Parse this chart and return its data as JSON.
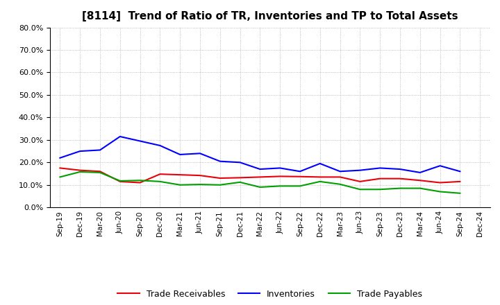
{
  "title": "[8114]  Trend of Ratio of TR, Inventories and TP to Total Assets",
  "x_labels": [
    "Sep-19",
    "Dec-19",
    "Mar-20",
    "Jun-20",
    "Sep-20",
    "Dec-20",
    "Mar-21",
    "Jun-21",
    "Sep-21",
    "Dec-21",
    "Mar-22",
    "Jun-22",
    "Sep-22",
    "Dec-22",
    "Mar-23",
    "Jun-23",
    "Sep-23",
    "Dec-23",
    "Mar-24",
    "Jun-24",
    "Sep-24",
    "Dec-24"
  ],
  "trade_receivables": [
    0.175,
    0.165,
    0.16,
    0.115,
    0.11,
    0.148,
    0.145,
    0.142,
    0.13,
    0.132,
    0.135,
    0.138,
    0.137,
    0.135,
    0.135,
    0.115,
    0.128,
    0.128,
    0.12,
    0.11,
    0.115,
    null
  ],
  "inventories": [
    0.22,
    0.25,
    0.255,
    0.315,
    0.295,
    0.275,
    0.235,
    0.24,
    0.205,
    0.2,
    0.17,
    0.175,
    0.16,
    0.195,
    0.16,
    0.165,
    0.175,
    0.17,
    0.155,
    0.185,
    0.16,
    null
  ],
  "trade_payables": [
    0.135,
    0.158,
    0.155,
    0.118,
    0.12,
    0.115,
    0.1,
    0.102,
    0.1,
    0.112,
    0.09,
    0.095,
    0.095,
    0.115,
    0.103,
    0.08,
    0.08,
    0.085,
    0.085,
    0.07,
    0.063,
    null
  ],
  "tr_color": "#e8000b",
  "inv_color": "#0000ff",
  "tp_color": "#00a000",
  "ylim": [
    0.0,
    0.8
  ],
  "yticks": [
    0.0,
    0.1,
    0.2,
    0.3,
    0.4,
    0.5,
    0.6,
    0.7,
    0.8
  ],
  "legend_labels": [
    "Trade Receivables",
    "Inventories",
    "Trade Payables"
  ],
  "background_color": "#ffffff",
  "plot_bg_color": "#ffffff",
  "grid_color": "#888888",
  "title_fontsize": 11,
  "figsize": [
    7.2,
    4.4
  ],
  "dpi": 100
}
